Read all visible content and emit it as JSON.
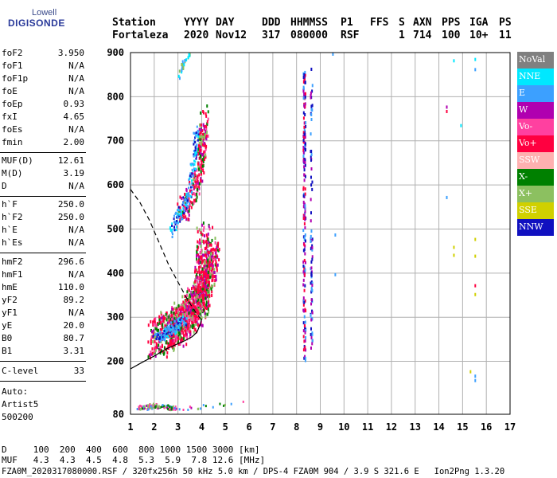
{
  "logo": {
    "line1": "Lowell",
    "line2": "DIGISONDE"
  },
  "header": {
    "station_label": "Station",
    "station_value": "Fortaleza",
    "yyyy_label": "YYYY",
    "yyyy_value": "2020",
    "day_label": "DAY",
    "day_value": "Nov12",
    "ddd_label": "DDD",
    "ddd_value": "317",
    "time_label": "HHMMSS",
    "time_value": "080000",
    "p1_label": "P1",
    "p1_value": "RSF",
    "ffs_label": "FFS",
    "ffs_value": "",
    "s_label": "S",
    "s_value": "1",
    "axn_label": "AXN",
    "axn_value": "714",
    "pps_label": "PPS",
    "pps_value": "100",
    "iga_label": "IGA",
    "iga_value": "10+",
    "ps_label": "PS",
    "ps_value": "11"
  },
  "params_group1": [
    {
      "name": "foF2",
      "value": "3.950"
    },
    {
      "name": "foF1",
      "value": "N/A"
    },
    {
      "name": "foF1p",
      "value": "N/A"
    },
    {
      "name": "foE",
      "value": "N/A"
    },
    {
      "name": "foEp",
      "value": "0.93"
    },
    {
      "name": "fxI",
      "value": "4.65"
    },
    {
      "name": "foEs",
      "value": "N/A"
    },
    {
      "name": "fmin",
      "value": "2.00"
    }
  ],
  "params_group2": [
    {
      "name": "MUF(D)",
      "value": "12.61"
    },
    {
      "name": "M(D)",
      "value": "3.19"
    },
    {
      "name": "D",
      "value": "N/A"
    }
  ],
  "params_group3": [
    {
      "name": "h`F",
      "value": "250.0"
    },
    {
      "name": "h`F2",
      "value": "250.0"
    },
    {
      "name": "h`E",
      "value": "N/A"
    },
    {
      "name": "h`Es",
      "value": "N/A"
    }
  ],
  "params_group4": [
    {
      "name": "hmF2",
      "value": "296.6"
    },
    {
      "name": "hmF1",
      "value": "N/A"
    },
    {
      "name": "hmE",
      "value": "110.0"
    },
    {
      "name": "yF2",
      "value": "89.2"
    },
    {
      "name": "yF1",
      "value": "N/A"
    },
    {
      "name": "yE",
      "value": "20.0"
    },
    {
      "name": "B0",
      "value": "80.7"
    },
    {
      "name": "B1",
      "value": "3.31"
    }
  ],
  "params_group5": [
    {
      "name": "C-level",
      "value": "33"
    }
  ],
  "autoscaling": {
    "line1": "Auto:",
    "line2": "Artist5",
    "line3": "500200"
  },
  "legend": [
    {
      "label": "NoVal",
      "color": "#808080"
    },
    {
      "label": "NNE",
      "color": "#00e8ff"
    },
    {
      "label": "E",
      "color": "#3ca0ff"
    },
    {
      "label": "W",
      "color": "#b000b0"
    },
    {
      "label": "Vo-",
      "color": "#ff40a0"
    },
    {
      "label": "Vo+",
      "color": "#ff0040"
    },
    {
      "label": "SSW",
      "color": "#ffb0b0"
    },
    {
      "label": "X-",
      "color": "#008000"
    },
    {
      "label": "X+",
      "color": "#8cc060"
    },
    {
      "label": "SSE",
      "color": "#d0d000"
    },
    {
      "label": "NNW",
      "color": "#1010c0"
    }
  ],
  "footer": {
    "row1": "D     100  200  400  600  800 1000 1500 3000 [km]",
    "row2": "MUF   4.3  4.3  4.5  4.8  5.3  5.9  7.8 12.6 [MHz]",
    "row3": "FZA0M_2020317080000.RSF / 320fx256h 50 kHz 5.0 km / DPS-4 FZA0M 904 / 3.9 S 321.6 E   Ion2Png 1.3.20"
  },
  "chart_data": {
    "type": "scatter",
    "x_ticks": [
      "1",
      "2",
      "3",
      "4",
      "5",
      "6",
      "7",
      "8",
      "9",
      "10",
      "11",
      "12",
      "13",
      "14",
      "15",
      "16",
      "17"
    ],
    "y_ticks": [
      "80",
      "200",
      "300",
      "400",
      "500",
      "600",
      "700",
      "800",
      "900"
    ],
    "xlim": [
      1,
      17
    ],
    "ylim": [
      80,
      900
    ],
    "grid": true,
    "legend_position": "right",
    "profile_curve": [
      [
        1.0,
        183
      ],
      [
        1.5,
        198
      ],
      [
        2.0,
        212
      ],
      [
        2.5,
        228
      ],
      [
        3.0,
        240
      ],
      [
        3.3,
        247
      ],
      [
        3.6,
        256
      ],
      [
        3.8,
        266
      ],
      [
        3.95,
        285
      ],
      [
        4.0,
        297
      ]
    ],
    "profile_dashed": [
      [
        1.0,
        590
      ],
      [
        1.4,
        560
      ],
      [
        1.8,
        520
      ],
      [
        2.2,
        470
      ],
      [
        2.6,
        420
      ],
      [
        3.0,
        380
      ],
      [
        3.4,
        340
      ],
      [
        3.7,
        315
      ],
      [
        3.95,
        297
      ]
    ],
    "trace_lower_ordinary": [
      [
        2.0,
        252
      ],
      [
        2.3,
        262
      ],
      [
        2.6,
        272
      ],
      [
        2.9,
        283
      ],
      [
        3.2,
        295
      ],
      [
        3.5,
        310
      ],
      [
        3.7,
        325
      ],
      [
        3.9,
        345
      ],
      [
        4.0,
        370
      ],
      [
        4.05,
        400
      ],
      [
        4.1,
        440
      ],
      [
        4.1,
        480
      ]
    ],
    "trace_upper_extraordinary": [
      [
        2.7,
        270
      ],
      [
        3.0,
        285
      ],
      [
        3.3,
        300
      ],
      [
        3.6,
        320
      ],
      [
        3.9,
        345
      ],
      [
        4.1,
        370
      ],
      [
        4.3,
        400
      ],
      [
        4.4,
        430
      ],
      [
        4.5,
        460
      ]
    ],
    "trace_high_branch": [
      [
        3.0,
        525
      ],
      [
        3.3,
        555
      ],
      [
        3.6,
        585
      ],
      [
        3.8,
        615
      ],
      [
        3.9,
        650
      ],
      [
        4.0,
        690
      ],
      [
        4.05,
        720
      ],
      [
        4.1,
        760
      ]
    ],
    "vertical_echo_8_3": [
      [
        8.3,
        200
      ],
      [
        8.3,
        300
      ],
      [
        8.3,
        400
      ],
      [
        8.3,
        500
      ],
      [
        8.3,
        600
      ],
      [
        8.3,
        700
      ],
      [
        8.3,
        800
      ],
      [
        8.3,
        880
      ]
    ],
    "vertical_echo_8_6": [
      [
        8.6,
        250
      ],
      [
        8.6,
        350
      ],
      [
        8.6,
        450
      ],
      [
        8.6,
        550
      ],
      [
        8.6,
        750
      ],
      [
        8.6,
        850
      ]
    ],
    "low_cluster": [
      [
        1.3,
        96
      ],
      [
        1.6,
        98
      ],
      [
        2.0,
        102
      ],
      [
        2.3,
        100
      ],
      [
        2.6,
        97
      ],
      [
        2.8,
        95
      ],
      [
        5.9,
        108
      ]
    ],
    "upper_cluster": [
      [
        3.0,
        845
      ],
      [
        3.1,
        860
      ],
      [
        3.2,
        875
      ],
      [
        3.4,
        895
      ],
      [
        3.5,
        900
      ]
    ],
    "right_points": [
      [
        14.3,
        780
      ],
      [
        14.3,
        770
      ],
      [
        14.6,
        885
      ],
      [
        14.9,
        738
      ],
      [
        14.3,
        575
      ],
      [
        14.6,
        462
      ],
      [
        14.6,
        444
      ],
      [
        15.5,
        480
      ],
      [
        15.5,
        442
      ],
      [
        15.5,
        375
      ],
      [
        15.5,
        355
      ],
      [
        15.5,
        865
      ],
      [
        15.5,
        888
      ],
      [
        15.3,
        180
      ],
      [
        15.5,
        170
      ],
      [
        15.5,
        160
      ],
      [
        9.5,
        900
      ],
      [
        9.6,
        490
      ],
      [
        9.6,
        400
      ]
    ]
  }
}
